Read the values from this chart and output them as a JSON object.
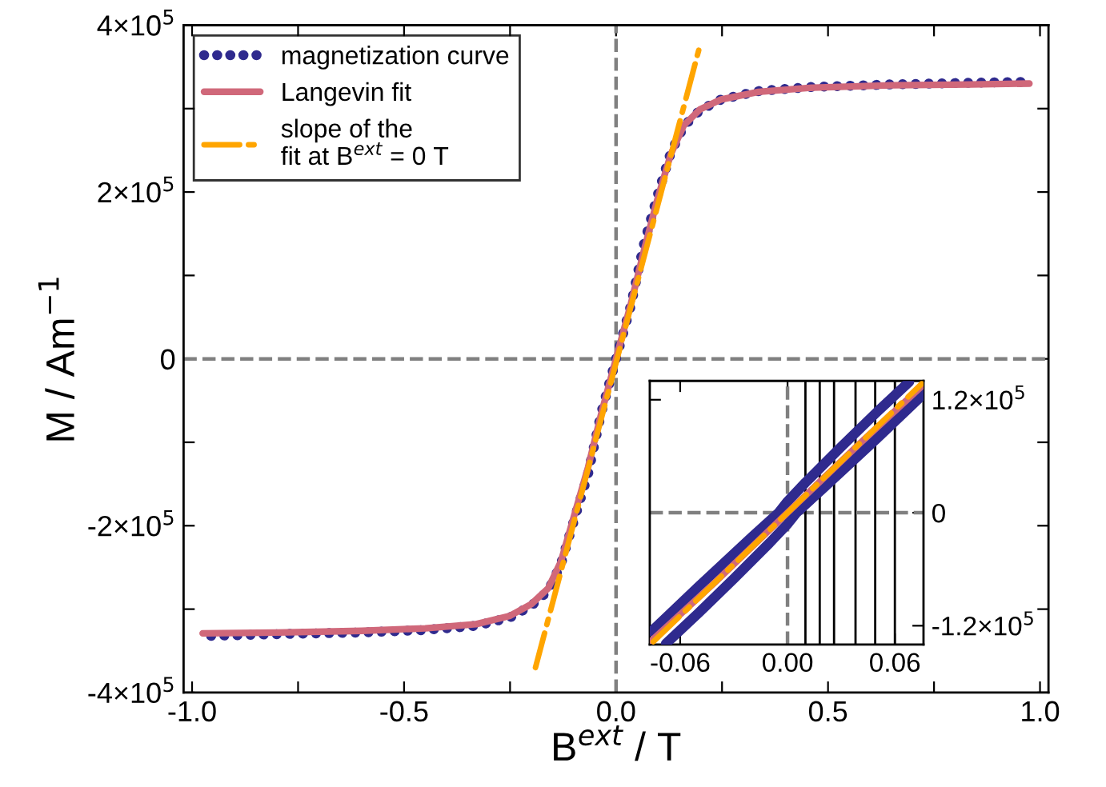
{
  "chart_data": [
    {
      "type": "line",
      "xlabel": "B$^{ext}$ / T",
      "ylabel": "M / Am$^{−1}$",
      "xlim": [
        -1.02,
        1.02
      ],
      "ylim": [
        -400000,
        400000
      ],
      "xticks": [
        {
          "value": -1,
          "label": "-1.0"
        },
        {
          "value": -0.75,
          "label": null
        },
        {
          "value": -0.5,
          "label": "-0.5"
        },
        {
          "value": -0.25,
          "label": null
        },
        {
          "value": 0,
          "label": "0.0"
        },
        {
          "value": 0.25,
          "label": null
        },
        {
          "value": 0.5,
          "label": "0.5"
        },
        {
          "value": 0.75,
          "label": null
        },
        {
          "value": 1,
          "label": "1.0"
        }
      ],
      "yticks": [
        {
          "value": -400000,
          "label": "-4×10$^{5}$"
        },
        {
          "value": -300000,
          "label": null
        },
        {
          "value": -200000,
          "label": "-2×10$^{5}$"
        },
        {
          "value": -100000,
          "label": null
        },
        0,
        {
          "value": 100000,
          "label": null
        },
        {
          "value": 200000,
          "label": "2×10$^{5}$"
        },
        {
          "value": 300000,
          "label": null
        },
        {
          "value": 400000,
          "label": "4×10$^{5}$"
        }
      ],
      "grid": false,
      "legend": "top left",
      "series": [
        {
          "name": "magnetization curve",
          "color": "#2f2a8e",
          "line_style": "dotted",
          "x": [
            -0.955,
            -0.8,
            -0.6,
            -0.45,
            -0.33,
            -0.25,
            -0.2,
            -0.16,
            -0.13,
            -0.1,
            -0.066,
            -0.035,
            0,
            0.035,
            0.066,
            0.098,
            0.129,
            0.16,
            0.198,
            0.248,
            0.336,
            0.461,
            0.649,
            0.837,
            0.955
          ],
          "values": [
            -332000,
            -330000,
            -328000,
            -325000,
            -320000,
            -310000,
            -296000,
            -278000,
            -246000,
            -195000,
            -138000,
            -65000,
            0,
            64000,
            138000,
            196000,
            247000,
            279000,
            298000,
            311000,
            321000,
            326000,
            329000,
            331000,
            332000
          ]
        },
        {
          "name": "Langevin fit",
          "color": "#d0687a",
          "line_style": "solid",
          "x": [
            -0.975,
            -0.8,
            -0.6,
            -0.45,
            -0.33,
            -0.25,
            -0.2,
            -0.16,
            -0.13,
            -0.1,
            -0.066,
            -0.035,
            0,
            0.035,
            0.066,
            0.098,
            0.129,
            0.16,
            0.198,
            0.248,
            0.336,
            0.461,
            0.649,
            0.837,
            0.975
          ],
          "values": [
            -329000,
            -328000,
            -326000,
            -323000,
            -318000,
            -308000,
            -294000,
            -275000,
            -243000,
            -190000,
            -130000,
            -66000,
            0,
            66000,
            130000,
            192000,
            245000,
            280000,
            299000,
            311000,
            320000,
            325000,
            328000,
            329000,
            330000
          ]
        },
        {
          "name": "slope of the\nfit at B$^{ext}$ = 0 T",
          "color": "#ffa500",
          "line_style": "dashdot",
          "x": [
            -0.19,
            0.195
          ],
          "values": [
            -370000,
            370000
          ]
        }
      ],
      "ref_lines": [
        {
          "axis": "x",
          "value": 0,
          "color": "#808080",
          "line_style": "dashed"
        },
        {
          "axis": "y",
          "value": 0,
          "color": "#808080",
          "line_style": "dashed"
        }
      ]
    },
    {
      "type": "line",
      "xlim": [
        -0.077,
        0.076
      ],
      "ylim": [
        -140000,
        140000
      ],
      "xticks": [
        {
          "value": -0.06,
          "label": "-0.06"
        },
        {
          "value": 0,
          "label": "0.00"
        },
        {
          "value": 0.06,
          "label": "0.06"
        }
      ],
      "yticks": [
        {
          "value": -120000,
          "label": "-1.2×10$^{5}$"
        },
        0,
        {
          "value": 120000,
          "label": "1.2×10$^{5}$"
        }
      ],
      "grid": false,
      "series": [
        {
          "color": "#2f2a8e",
          "line_style": "solid",
          "x": [
            -0.076,
            -0.05,
            -0.02,
            -0.005,
            0,
            0.01,
            0.03,
            0.05,
            0.068
          ],
          "values": [
            -126000,
            -79000,
            -26000,
            0,
            12000,
            32000,
            70000,
            107000,
            139000
          ]
        },
        {
          "color": "#2f2a8e",
          "line_style": "solid",
          "x": [
            -0.068,
            -0.05,
            -0.03,
            -0.01,
            0,
            0.005,
            0.02,
            0.05,
            0.076
          ],
          "values": [
            -139000,
            -107000,
            -70000,
            -32000,
            -12000,
            0,
            26000,
            79000,
            126000
          ]
        },
        {
          "color": "#d0687a",
          "line_style": "solid",
          "x": [
            -0.076,
            -0.04,
            0,
            0.04,
            0.076
          ],
          "values": [
            -136000,
            -73000,
            0,
            73000,
            136000
          ]
        },
        {
          "color": "#ffa500",
          "line_style": "dashdot",
          "x": [
            -0.075,
            0.075
          ],
          "values": [
            -137000,
            137000
          ]
        }
      ],
      "ref_lines": [
        {
          "axis": "x",
          "value": 0,
          "color": "#808080",
          "line_style": "dashed"
        },
        {
          "axis": "y",
          "value": 0,
          "color": "#808080",
          "line_style": "dashed"
        },
        {
          "axis": "x",
          "value": 0.01,
          "color": "#000000",
          "line_style": "solid"
        },
        {
          "axis": "x",
          "value": 0.018,
          "color": "#000000",
          "line_style": "solid"
        },
        {
          "axis": "x",
          "value": 0.026,
          "color": "#000000",
          "line_style": "solid"
        },
        {
          "axis": "x",
          "value": 0.038,
          "color": "#000000",
          "line_style": "solid"
        },
        {
          "axis": "x",
          "value": 0.049,
          "color": "#000000",
          "line_style": "solid"
        },
        {
          "axis": "x",
          "value": 0.06,
          "color": "#000000",
          "line_style": "solid"
        }
      ]
    }
  ]
}
